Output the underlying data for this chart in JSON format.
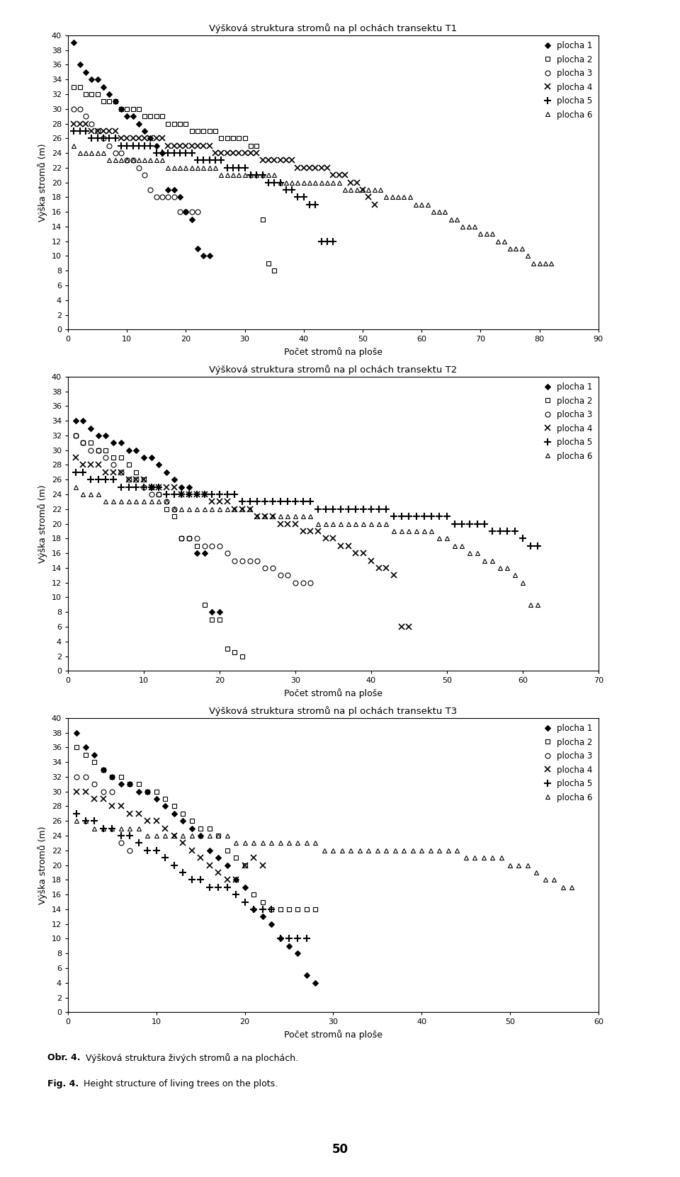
{
  "titles": [
    "Výšková struktura stromů na pl ochách transektu T1",
    "Výšková struktura stromů na pl ochách transektu T2",
    "Výšková struktura stromů na pl ochách transektu T3"
  ],
  "xlabel": "Počet stromů na ploše",
  "ylabel": "Výška stromů (m)",
  "legend_labels": [
    "plocha 1",
    "plocha 2",
    "plocha 3",
    "plocha 4",
    "plocha 5",
    "plocha 6"
  ],
  "xlims": [
    90,
    70,
    60
  ],
  "ylim": [
    0,
    40
  ],
  "yticks": [
    0,
    2,
    4,
    6,
    8,
    10,
    12,
    14,
    16,
    18,
    20,
    22,
    24,
    26,
    28,
    30,
    32,
    34,
    36,
    38,
    40
  ],
  "caption_bold": "Obr. 4.",
  "caption_normal": " Výšková struktura živých stromů a na pl ochách.",
  "caption2_bold": "Fig. 4.",
  "caption2_normal": " Height structure of living trees on the plots.",
  "page_number": "50",
  "background": "#ffffff",
  "t1_data": {
    "p1x": [
      1,
      2,
      3,
      4,
      5,
      6,
      7,
      8,
      9,
      10,
      11,
      12,
      13,
      14,
      15,
      16,
      17,
      18,
      19,
      20,
      21,
      22,
      23,
      24
    ],
    "p1y": [
      39,
      36,
      35,
      34,
      34,
      33,
      32,
      31,
      30,
      29,
      29,
      28,
      27,
      26,
      25,
      24,
      19,
      19,
      18,
      16,
      15,
      11,
      10,
      10
    ],
    "p2x": [
      1,
      2,
      3,
      4,
      5,
      6,
      7,
      8,
      9,
      10,
      11,
      12,
      13,
      14,
      15,
      16,
      17,
      18,
      19,
      20,
      21,
      22,
      23,
      24,
      25,
      26,
      27,
      28,
      29,
      30,
      31,
      32,
      33,
      34,
      35
    ],
    "p2y": [
      33,
      33,
      32,
      32,
      32,
      31,
      31,
      31,
      30,
      30,
      30,
      30,
      29,
      29,
      29,
      29,
      28,
      28,
      28,
      28,
      27,
      27,
      27,
      27,
      27,
      26,
      26,
      26,
      26,
      26,
      25,
      25,
      15,
      9,
      8
    ],
    "p3x": [
      1,
      2,
      3,
      4,
      5,
      6,
      7,
      8,
      9,
      10,
      11,
      12,
      13,
      14,
      15,
      16,
      17,
      18,
      19,
      20,
      21,
      22
    ],
    "p3y": [
      30,
      30,
      29,
      28,
      27,
      26,
      25,
      24,
      24,
      23,
      23,
      22,
      21,
      19,
      18,
      18,
      18,
      18,
      16,
      16,
      16,
      16
    ],
    "p4x": [
      1,
      2,
      3,
      4,
      5,
      6,
      7,
      8,
      9,
      10,
      11,
      12,
      13,
      14,
      15,
      16,
      17,
      18,
      19,
      20,
      21,
      22,
      23,
      24,
      25,
      26,
      27,
      28,
      29,
      30,
      31,
      32,
      33,
      34,
      35,
      36,
      37,
      38,
      39,
      40,
      41,
      42,
      43,
      44,
      45,
      46,
      47,
      48,
      49,
      50,
      51,
      52
    ],
    "p4y": [
      28,
      28,
      28,
      27,
      27,
      27,
      27,
      27,
      26,
      26,
      26,
      26,
      26,
      26,
      26,
      26,
      25,
      25,
      25,
      25,
      25,
      25,
      25,
      25,
      24,
      24,
      24,
      24,
      24,
      24,
      24,
      24,
      23,
      23,
      23,
      23,
      23,
      23,
      22,
      22,
      22,
      22,
      22,
      22,
      21,
      21,
      21,
      20,
      20,
      19,
      18,
      17
    ],
    "p5x": [
      1,
      2,
      3,
      4,
      5,
      6,
      7,
      8,
      9,
      10,
      11,
      12,
      13,
      14,
      15,
      16,
      17,
      18,
      19,
      20,
      21,
      22,
      23,
      24,
      25,
      26,
      27,
      28,
      29,
      30,
      31,
      32,
      33,
      34,
      35,
      36,
      37,
      38,
      39,
      40,
      41,
      42,
      43,
      44,
      45
    ],
    "p5y": [
      27,
      27,
      27,
      26,
      26,
      26,
      26,
      26,
      25,
      25,
      25,
      25,
      25,
      25,
      24,
      24,
      24,
      24,
      24,
      24,
      24,
      23,
      23,
      23,
      23,
      23,
      22,
      22,
      22,
      22,
      21,
      21,
      21,
      20,
      20,
      20,
      19,
      19,
      18,
      18,
      17,
      17,
      12,
      12,
      12
    ],
    "p6x": [
      1,
      2,
      3,
      4,
      5,
      6,
      7,
      8,
      9,
      10,
      11,
      12,
      13,
      14,
      15,
      16,
      17,
      18,
      19,
      20,
      21,
      22,
      23,
      24,
      25,
      26,
      27,
      28,
      29,
      30,
      31,
      32,
      33,
      34,
      35,
      36,
      37,
      38,
      39,
      40,
      41,
      42,
      43,
      44,
      45,
      46,
      47,
      48,
      49,
      50,
      51,
      52,
      53,
      54,
      55,
      56,
      57,
      58,
      59,
      60,
      61,
      62,
      63,
      64,
      65,
      66,
      67,
      68,
      69,
      70,
      71,
      72,
      73,
      74,
      75,
      76,
      77,
      78,
      79,
      80,
      81,
      82
    ],
    "p6y": [
      25,
      24,
      24,
      24,
      24,
      24,
      23,
      23,
      23,
      23,
      23,
      23,
      23,
      23,
      23,
      23,
      22,
      22,
      22,
      22,
      22,
      22,
      22,
      22,
      22,
      21,
      21,
      21,
      21,
      21,
      21,
      21,
      21,
      21,
      21,
      20,
      20,
      20,
      20,
      20,
      20,
      20,
      20,
      20,
      20,
      20,
      19,
      19,
      19,
      19,
      19,
      19,
      19,
      18,
      18,
      18,
      18,
      18,
      17,
      17,
      17,
      16,
      16,
      16,
      15,
      15,
      14,
      14,
      14,
      13,
      13,
      13,
      12,
      12,
      11,
      11,
      11,
      10,
      9,
      9,
      9,
      9
    ]
  },
  "t2_data": {
    "p1x": [
      1,
      2,
      3,
      4,
      5,
      6,
      7,
      8,
      9,
      10,
      11,
      12,
      13,
      14,
      15,
      16,
      17,
      18,
      19,
      20
    ],
    "p1y": [
      34,
      34,
      33,
      32,
      32,
      31,
      31,
      30,
      30,
      29,
      29,
      28,
      27,
      26,
      25,
      25,
      16,
      16,
      8,
      8
    ],
    "p2x": [
      1,
      2,
      3,
      4,
      5,
      6,
      7,
      8,
      9,
      10,
      11,
      12,
      13,
      14,
      15,
      16,
      17,
      18,
      19,
      20,
      21,
      22,
      23
    ],
    "p2y": [
      32,
      31,
      31,
      30,
      30,
      29,
      29,
      28,
      27,
      26,
      25,
      24,
      22,
      21,
      18,
      18,
      17,
      9,
      7,
      7,
      3,
      2.5,
      2
    ],
    "p3x": [
      1,
      2,
      3,
      4,
      5,
      6,
      7,
      8,
      9,
      10,
      11,
      12,
      13,
      14,
      15,
      16,
      17,
      18,
      19,
      20,
      21,
      22,
      23,
      24,
      25,
      26,
      27,
      28,
      29,
      30,
      31,
      32
    ],
    "p3y": [
      32,
      31,
      30,
      30,
      29,
      28,
      27,
      26,
      26,
      25,
      24,
      24,
      23,
      22,
      18,
      18,
      18,
      17,
      17,
      17,
      16,
      15,
      15,
      15,
      15,
      14,
      14,
      13,
      13,
      12,
      12,
      12
    ],
    "p4x": [
      1,
      2,
      3,
      4,
      5,
      6,
      7,
      8,
      9,
      10,
      11,
      12,
      13,
      14,
      15,
      16,
      17,
      18,
      19,
      20,
      21,
      22,
      23,
      24,
      25,
      26,
      27,
      28,
      29,
      30,
      31,
      32,
      33,
      34,
      35,
      36,
      37,
      38,
      39,
      40,
      41,
      42,
      43,
      44,
      45
    ],
    "p4y": [
      29,
      28,
      28,
      28,
      27,
      27,
      27,
      26,
      26,
      26,
      25,
      25,
      25,
      25,
      24,
      24,
      24,
      24,
      23,
      23,
      23,
      22,
      22,
      22,
      21,
      21,
      21,
      20,
      20,
      20,
      19,
      19,
      19,
      18,
      18,
      17,
      17,
      16,
      16,
      15,
      14,
      14,
      13,
      6,
      6
    ],
    "p5x": [
      1,
      2,
      3,
      4,
      5,
      6,
      7,
      8,
      9,
      10,
      11,
      12,
      13,
      14,
      15,
      16,
      17,
      18,
      19,
      20,
      21,
      22,
      23,
      24,
      25,
      26,
      27,
      28,
      29,
      30,
      31,
      32,
      33,
      34,
      35,
      36,
      37,
      38,
      39,
      40,
      41,
      42,
      43,
      44,
      45,
      46,
      47,
      48,
      49,
      50,
      51,
      52,
      53,
      54,
      55,
      56,
      57,
      58,
      59,
      60,
      61,
      62
    ],
    "p5y": [
      27,
      27,
      26,
      26,
      26,
      26,
      25,
      25,
      25,
      25,
      25,
      25,
      24,
      24,
      24,
      24,
      24,
      24,
      24,
      24,
      24,
      24,
      23,
      23,
      23,
      23,
      23,
      23,
      23,
      23,
      23,
      23,
      22,
      22,
      22,
      22,
      22,
      22,
      22,
      22,
      22,
      22,
      21,
      21,
      21,
      21,
      21,
      21,
      21,
      21,
      20,
      20,
      20,
      20,
      20,
      19,
      19,
      19,
      19,
      18,
      17,
      17
    ],
    "p6x": [
      1,
      2,
      3,
      4,
      5,
      6,
      7,
      8,
      9,
      10,
      11,
      12,
      13,
      14,
      15,
      16,
      17,
      18,
      19,
      20,
      21,
      22,
      23,
      24,
      25,
      26,
      27,
      28,
      29,
      30,
      31,
      32,
      33,
      34,
      35,
      36,
      37,
      38,
      39,
      40,
      41,
      42,
      43,
      44,
      45,
      46,
      47,
      48,
      49,
      50,
      51,
      52,
      53,
      54,
      55,
      56,
      57,
      58,
      59,
      60,
      61,
      62
    ],
    "p6y": [
      25,
      24,
      24,
      24,
      23,
      23,
      23,
      23,
      23,
      23,
      23,
      23,
      23,
      22,
      22,
      22,
      22,
      22,
      22,
      22,
      22,
      22,
      22,
      22,
      21,
      21,
      21,
      21,
      21,
      21,
      21,
      21,
      20,
      20,
      20,
      20,
      20,
      20,
      20,
      20,
      20,
      20,
      19,
      19,
      19,
      19,
      19,
      19,
      18,
      18,
      17,
      17,
      16,
      16,
      15,
      15,
      14,
      14,
      13,
      12,
      9,
      9
    ]
  },
  "t3_data": {
    "p1x": [
      1,
      2,
      3,
      4,
      5,
      6,
      7,
      8,
      9,
      10,
      11,
      12,
      13,
      14,
      15,
      16,
      17,
      18,
      19,
      20,
      21,
      22,
      23,
      24,
      25,
      26,
      27,
      28
    ],
    "p1y": [
      38,
      36,
      35,
      33,
      32,
      31,
      31,
      30,
      30,
      29,
      28,
      27,
      26,
      25,
      24,
      22,
      21,
      20,
      18,
      17,
      14,
      13,
      12,
      10,
      9,
      8,
      5,
      4
    ],
    "p2x": [
      1,
      2,
      3,
      4,
      5,
      6,
      7,
      8,
      9,
      10,
      11,
      12,
      13,
      14,
      15,
      16,
      17,
      18,
      19,
      20,
      21,
      22,
      23,
      24,
      25,
      26,
      27,
      28
    ],
    "p2y": [
      36,
      35,
      34,
      33,
      32,
      32,
      31,
      31,
      30,
      30,
      29,
      28,
      27,
      26,
      25,
      25,
      24,
      22,
      21,
      20,
      16,
      15,
      14,
      14,
      14,
      14,
      14,
      14
    ],
    "p3x": [
      1,
      2,
      3,
      4,
      5,
      6,
      7
    ],
    "p3y": [
      32,
      32,
      31,
      30,
      30,
      23,
      22
    ],
    "p4x": [
      1,
      2,
      3,
      4,
      5,
      6,
      7,
      8,
      9,
      10,
      11,
      12,
      13,
      14,
      15,
      16,
      17,
      18,
      19,
      20,
      21,
      22
    ],
    "p4y": [
      30,
      30,
      29,
      29,
      28,
      28,
      27,
      27,
      26,
      26,
      25,
      24,
      23,
      22,
      21,
      20,
      19,
      18,
      18,
      20,
      21,
      20
    ],
    "p5x": [
      1,
      2,
      3,
      4,
      5,
      6,
      7,
      8,
      9,
      10,
      11,
      12,
      13,
      14,
      15,
      16,
      17,
      18,
      19,
      20,
      21,
      22,
      23,
      24,
      25,
      26,
      27
    ],
    "p5y": [
      27,
      26,
      26,
      25,
      25,
      24,
      24,
      23,
      22,
      22,
      21,
      20,
      19,
      18,
      18,
      17,
      17,
      17,
      16,
      15,
      14,
      14,
      14,
      10,
      10,
      10,
      10
    ],
    "p6x": [
      1,
      2,
      3,
      4,
      5,
      6,
      7,
      8,
      9,
      10,
      11,
      12,
      13,
      14,
      15,
      16,
      17,
      18,
      19,
      20,
      21,
      22,
      23,
      24,
      25,
      26,
      27,
      28,
      29,
      30,
      31,
      32,
      33,
      34,
      35,
      36,
      37,
      38,
      39,
      40,
      41,
      42,
      43,
      44,
      45,
      46,
      47,
      48,
      49,
      50,
      51,
      52,
      53,
      54,
      55,
      56,
      57
    ],
    "p6y": [
      26,
      26,
      25,
      25,
      25,
      25,
      25,
      25,
      24,
      24,
      24,
      24,
      24,
      24,
      24,
      24,
      24,
      24,
      23,
      23,
      23,
      23,
      23,
      23,
      23,
      23,
      23,
      23,
      22,
      22,
      22,
      22,
      22,
      22,
      22,
      22,
      22,
      22,
      22,
      22,
      22,
      22,
      22,
      22,
      21,
      21,
      21,
      21,
      21,
      20,
      20,
      20,
      19,
      18,
      18,
      17,
      17
    ]
  }
}
